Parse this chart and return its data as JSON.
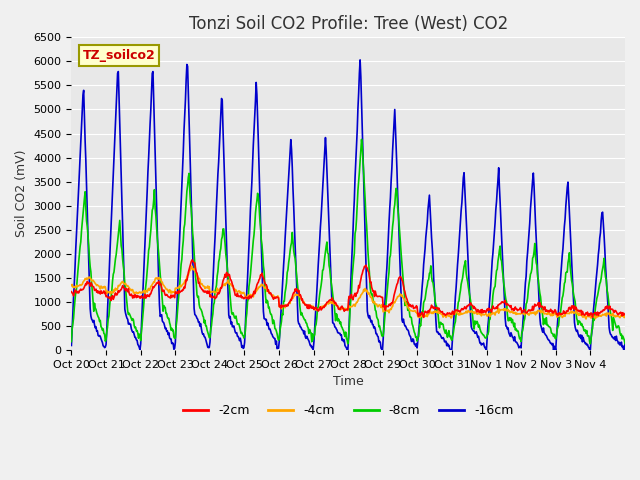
{
  "title": "Tonzi Soil CO2 Profile: Tree (West) CO2",
  "ylabel": "Soil CO2 (mV)",
  "xlabel": "Time",
  "legend_label": "TZ_soilco2",
  "series_labels": [
    "-2cm",
    "-4cm",
    "-8cm",
    "-16cm"
  ],
  "series_colors": [
    "#ff0000",
    "#ffa500",
    "#00cc00",
    "#0000cc"
  ],
  "ylim": [
    0,
    6500
  ],
  "xtick_labels": [
    "Oct 20",
    "Oct 21",
    "Oct 22",
    "Oct 23",
    "Oct 24",
    "Oct 25",
    "Oct 26",
    "Oct 27",
    "Oct 28",
    "Oct 29",
    "Oct 30",
    "Oct 31",
    "Nov 1",
    "Nov 2",
    "Nov 3",
    "Nov 4"
  ],
  "background_color": "#e8e8e8",
  "plot_bg_color": "#e8e8e8",
  "title_fontsize": 12,
  "axis_fontsize": 9,
  "tick_fontsize": 8
}
